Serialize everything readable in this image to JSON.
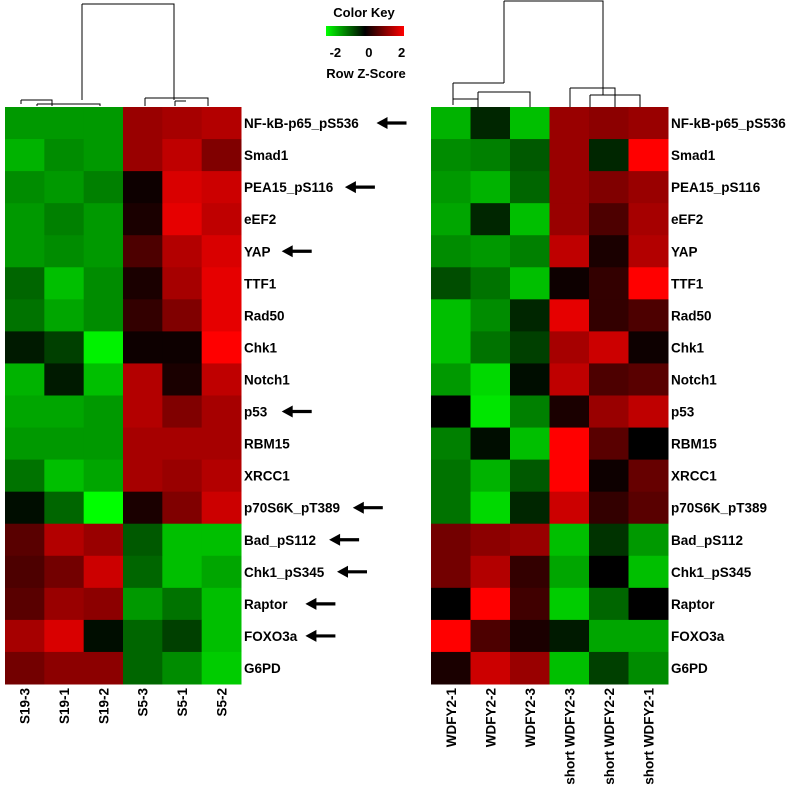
{
  "color_key": {
    "title": "Color Key",
    "ticks": [
      "-2",
      "0",
      "2"
    ],
    "label": "Row Z-Score",
    "low_color": "#00ff00",
    "mid_color": "#000000",
    "high_color": "#ff0000"
  },
  "chart_data": [
    {
      "type": "heatmap",
      "columns": [
        "S19-3",
        "S19-1",
        "S19-2",
        "S5-3",
        "S5-1",
        "S5-2"
      ],
      "rows": [
        "NF-kB-p65_pS536",
        "Smad1",
        "PEA15_pS116",
        "eEF2",
        "YAP",
        "TTF1",
        "Rad50",
        "Chk1",
        "Notch1",
        "p53",
        "RBM15",
        "XRCC1",
        "p70S6K_pT389",
        "Bad_pS112",
        "Chk1_pS345",
        "Raptor",
        "FOXO3a",
        "G6PD"
      ],
      "arrowed_rows": [
        "NF-kB-p65_pS536",
        "PEA15_pS116",
        "YAP",
        "p53",
        "p70S6K_pT389",
        "Bad_pS112",
        "Chk1_pS345",
        "Raptor",
        "FOXO3a"
      ],
      "values": [
        [
          -1.2,
          -1.2,
          -1.2,
          1.2,
          1.3,
          1.4
        ],
        [
          -1.4,
          -1.1,
          -1.2,
          1.2,
          1.5,
          1.0
        ],
        [
          -1.1,
          -1.2,
          -1.0,
          0.1,
          1.7,
          1.6
        ],
        [
          -1.2,
          -1.0,
          -1.2,
          0.2,
          1.8,
          1.5
        ],
        [
          -1.2,
          -1.1,
          -1.2,
          0.6,
          1.4,
          1.7
        ],
        [
          -0.8,
          -1.5,
          -1.1,
          0.2,
          1.3,
          1.8
        ],
        [
          -0.9,
          -1.3,
          -1.1,
          0.4,
          1.0,
          1.8
        ],
        [
          -0.2,
          -0.5,
          -1.9,
          0.1,
          0.1,
          2.0
        ],
        [
          -1.4,
          -0.2,
          -1.5,
          1.4,
          0.2,
          1.5
        ],
        [
          -1.3,
          -1.3,
          -1.2,
          1.4,
          1.0,
          1.3
        ],
        [
          -1.2,
          -1.2,
          -1.2,
          1.3,
          1.3,
          1.3
        ],
        [
          -0.9,
          -1.5,
          -1.3,
          1.3,
          1.2,
          1.4
        ],
        [
          -0.1,
          -0.8,
          -2.1,
          0.2,
          1.0,
          1.6
        ],
        [
          0.7,
          1.4,
          1.2,
          -0.7,
          -1.5,
          -1.5
        ],
        [
          0.6,
          0.9,
          1.6,
          -0.8,
          -1.5,
          -1.3
        ],
        [
          0.7,
          1.2,
          1.1,
          -1.2,
          -0.9,
          -1.5
        ],
        [
          1.3,
          1.7,
          -0.1,
          -0.8,
          -0.5,
          -1.5
        ],
        [
          0.9,
          1.1,
          1.1,
          -0.8,
          -1.1,
          -1.6
        ]
      ]
    },
    {
      "type": "heatmap",
      "columns": [
        "WDFY2-1",
        "WDFY2-2",
        "WDFY2-3",
        "short WDFY2-3",
        "short WDFY2-2",
        "short WDFY2-1"
      ],
      "rows": [
        "NF-kB-p65_pS536",
        "Smad1",
        "PEA15_pS116",
        "eEF2",
        "YAP",
        "TTF1",
        "Rad50",
        "Chk1",
        "Notch1",
        "p53",
        "RBM15",
        "XRCC1",
        "p70S6K_pT389",
        "Bad_pS112",
        "Chk1_pS345",
        "Raptor",
        "FOXO3a",
        "G6PD"
      ],
      "values": [
        [
          -1.4,
          -0.3,
          -1.5,
          1.2,
          1.1,
          1.2
        ],
        [
          -1.1,
          -1.0,
          -0.7,
          1.2,
          -0.3,
          2.0
        ],
        [
          -1.2,
          -1.4,
          -0.8,
          1.2,
          1.0,
          1.2
        ],
        [
          -1.3,
          -0.3,
          -1.5,
          1.2,
          0.6,
          1.3
        ],
        [
          -1.1,
          -1.2,
          -1.0,
          1.5,
          0.2,
          1.4
        ],
        [
          -0.6,
          -0.9,
          -1.5,
          0.1,
          0.4,
          2.0
        ],
        [
          -1.5,
          -1.1,
          -0.3,
          1.8,
          0.4,
          0.6
        ],
        [
          -1.5,
          -0.9,
          -0.5,
          1.3,
          1.6,
          0.1
        ],
        [
          -1.2,
          -1.7,
          -0.1,
          1.5,
          0.6,
          0.7
        ],
        [
          0.0,
          -1.8,
          -1.0,
          0.2,
          1.2,
          1.5
        ],
        [
          -1.0,
          -0.1,
          -1.5,
          2.0,
          0.7,
          0.0
        ],
        [
          -0.9,
          -1.4,
          -0.7,
          2.0,
          0.1,
          0.8
        ],
        [
          -0.9,
          -1.7,
          -0.3,
          1.6,
          0.4,
          0.7
        ],
        [
          0.9,
          1.1,
          1.2,
          -1.5,
          -0.4,
          -1.2
        ],
        [
          0.9,
          1.4,
          0.4,
          -1.3,
          0.0,
          -1.5
        ],
        [
          0.0,
          2.0,
          0.5,
          -1.6,
          -0.8,
          0.0
        ],
        [
          2.0,
          0.6,
          0.2,
          -0.2,
          -1.3,
          -1.3
        ],
        [
          0.2,
          1.6,
          1.2,
          -1.5,
          -0.5,
          -1.1
        ]
      ]
    }
  ]
}
